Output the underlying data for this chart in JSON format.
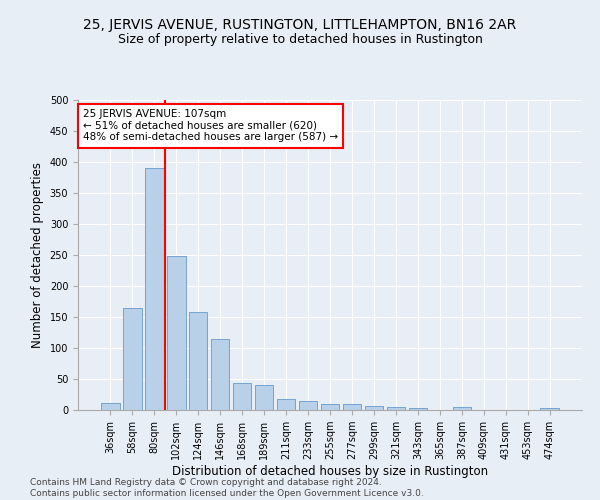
{
  "title": "25, JERVIS AVENUE, RUSTINGTON, LITTLEHAMPTON, BN16 2AR",
  "subtitle": "Size of property relative to detached houses in Rustington",
  "xlabel": "Distribution of detached houses by size in Rustington",
  "ylabel": "Number of detached properties",
  "bar_labels": [
    "36sqm",
    "58sqm",
    "80sqm",
    "102sqm",
    "124sqm",
    "146sqm",
    "168sqm",
    "189sqm",
    "211sqm",
    "233sqm",
    "255sqm",
    "277sqm",
    "299sqm",
    "321sqm",
    "343sqm",
    "365sqm",
    "387sqm",
    "409sqm",
    "431sqm",
    "453sqm",
    "474sqm"
  ],
  "bar_values": [
    12,
    165,
    390,
    248,
    158,
    115,
    43,
    40,
    18,
    15,
    10,
    9,
    6,
    5,
    4,
    0,
    5,
    0,
    0,
    0,
    4
  ],
  "bar_color": "#b8d0e8",
  "bar_edge_color": "#6699cc",
  "vline_color": "red",
  "vline_pos": 2.5,
  "annotation_line1": "25 JERVIS AVENUE: 107sqm",
  "annotation_line2": "← 51% of detached houses are smaller (620)",
  "annotation_line3": "48% of semi-detached houses are larger (587) →",
  "annotation_box_color": "white",
  "annotation_box_edge": "red",
  "ylim": [
    0,
    500
  ],
  "yticks": [
    0,
    50,
    100,
    150,
    200,
    250,
    300,
    350,
    400,
    450,
    500
  ],
  "footer": "Contains HM Land Registry data © Crown copyright and database right 2024.\nContains public sector information licensed under the Open Government Licence v3.0.",
  "bg_color": "#e8eef6",
  "plot_bg_color": "#e8eef6",
  "title_fontsize": 10,
  "subtitle_fontsize": 9,
  "axis_label_fontsize": 8.5,
  "tick_fontsize": 7,
  "footer_fontsize": 6.5,
  "annotation_fontsize": 7.5
}
